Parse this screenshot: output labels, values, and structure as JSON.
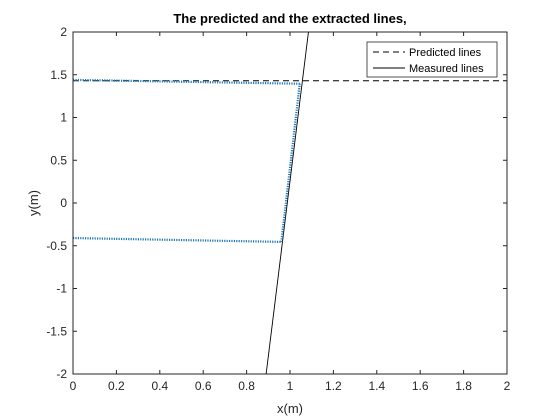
{
  "chart_data": {
    "type": "line",
    "title": "The predicted and the extracted lines,",
    "xlabel": "x(m)",
    "ylabel": "y(m)",
    "xlim": [
      0,
      2
    ],
    "ylim": [
      -2,
      2
    ],
    "xticks": [
      0,
      0.2,
      0.4,
      0.6,
      0.8,
      1,
      1.2,
      1.4,
      1.6,
      1.8,
      2
    ],
    "xtick_labels": [
      "0",
      "0.2",
      "0.4",
      "0.6",
      "0.8",
      "1",
      "1.2",
      "1.4",
      "1.6",
      "1.8",
      "2"
    ],
    "yticks": [
      -2,
      -1.5,
      -1,
      -0.5,
      0,
      0.5,
      1,
      1.5,
      2
    ],
    "ytick_labels": [
      "-2",
      "-1.5",
      "-1",
      "-0.5",
      "0",
      "0.5",
      "1",
      "1.5",
      "2"
    ],
    "grid": false,
    "legend_position": "top-right",
    "series": [
      {
        "name": "Predicted lines",
        "style": "dashed",
        "color": "#000000",
        "segments": [
          [
            [
              0,
              1.43
            ],
            [
              2,
              1.43
            ]
          ]
        ]
      },
      {
        "name": "Measured lines",
        "style": "solid",
        "color": "#000000",
        "segments": [
          [
            [
              0.89,
              -2.0
            ],
            [
              1.085,
              2.0
            ]
          ]
        ]
      },
      {
        "style": "dotted",
        "color": "#1f77b4",
        "segments": [
          [
            [
              0,
              1.44
            ],
            [
              1.045,
              1.395
            ]
          ],
          [
            [
              0,
              -0.41
            ],
            [
              0.96,
              -0.455
            ]
          ],
          [
            [
              0.96,
              -0.455
            ],
            [
              1.045,
              1.395
            ]
          ]
        ]
      }
    ]
  }
}
